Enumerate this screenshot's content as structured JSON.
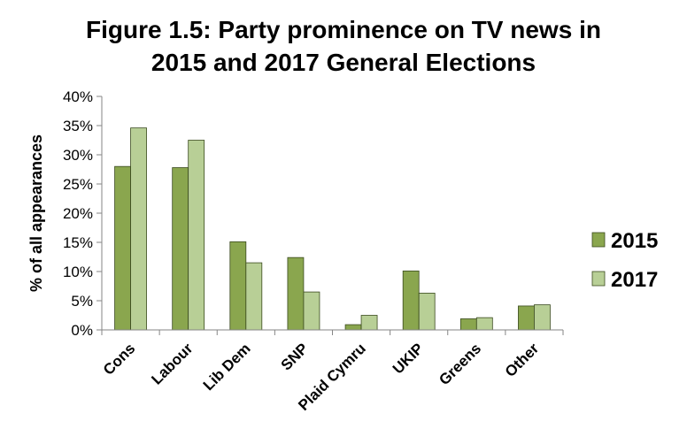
{
  "chart_data": {
    "type": "bar",
    "title_lines": [
      "Figure 1.5: Party prominence on TV news in",
      "2015 and 2017 General Elections"
    ],
    "ylabel": "% of all appearances",
    "categories": [
      "Cons",
      "Labour",
      "Lib Dem",
      "SNP",
      "Plaid Cymru",
      "UKIP",
      "Greens",
      "Other"
    ],
    "series": [
      {
        "name": "2015",
        "color": "#8aa64e",
        "values": [
          28.0,
          27.8,
          15.1,
          12.4,
          0.9,
          10.1,
          1.9,
          4.1
        ]
      },
      {
        "name": "2017",
        "color": "#b8cf96",
        "values": [
          34.6,
          32.5,
          11.5,
          6.5,
          2.5,
          6.3,
          2.1,
          4.3
        ]
      }
    ],
    "ylim": [
      0,
      40
    ],
    "yticks": [
      "0%",
      "5%",
      "10%",
      "15%",
      "20%",
      "25%",
      "30%",
      "35%",
      "40%"
    ],
    "grid": false,
    "legend_position": "right"
  }
}
